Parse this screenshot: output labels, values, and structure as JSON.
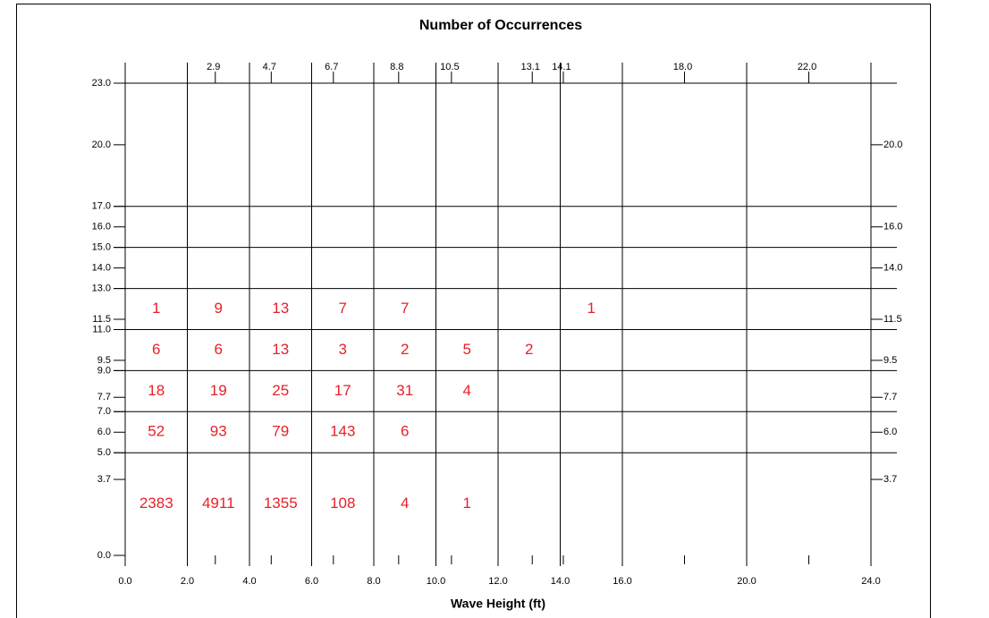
{
  "chart_data": {
    "type": "table-heatmap",
    "title": "Number of Occurrences",
    "x_label": "Wave Height (ft)",
    "xlim": [
      0,
      24
    ],
    "ylim": [
      0,
      23
    ],
    "xgrid": [
      0,
      2,
      4,
      6,
      8,
      10,
      12,
      14,
      16,
      20,
      24
    ],
    "ygrid": [
      5,
      7,
      9,
      11,
      13,
      15,
      17,
      23
    ],
    "xticks": [
      {
        "value": 0,
        "label": "0.0"
      },
      {
        "value": 2,
        "label": "2.0"
      },
      {
        "value": 4,
        "label": "4.0"
      },
      {
        "value": 6,
        "label": "6.0"
      },
      {
        "value": 8,
        "label": "8.0"
      },
      {
        "value": 10,
        "label": "10.0"
      },
      {
        "value": 12,
        "label": "12.0"
      },
      {
        "value": 14,
        "label": "14.0"
      },
      {
        "value": 16,
        "label": "16.0"
      },
      {
        "value": 20,
        "label": "20.0"
      },
      {
        "value": 24,
        "label": "24.0"
      }
    ],
    "x2ticks": [
      2.9,
      4.7,
      6.7,
      8.8,
      10.5,
      13.1,
      14.1,
      {
        "value": 18,
        "label": "18.0"
      },
      {
        "value": 22,
        "label": "22.0"
      }
    ],
    "yticks": [
      {
        "value": 23,
        "label": "23.0"
      },
      {
        "value": 20,
        "label": "20.0"
      },
      {
        "value": 17,
        "label": "17.0"
      },
      {
        "value": 16,
        "label": "16.0"
      },
      {
        "value": 15,
        "label": "15.0"
      },
      {
        "value": 14,
        "label": "14.0"
      },
      {
        "value": 13,
        "label": "13.0"
      },
      11.5,
      {
        "value": 11,
        "label": "11.0"
      },
      9.5,
      {
        "value": 9,
        "label": "9.0"
      },
      7.7,
      {
        "value": 7,
        "label": "7.0"
      },
      {
        "value": 6,
        "label": "6.0"
      },
      {
        "value": 5,
        "label": "5.0"
      },
      3.7,
      {
        "value": 0,
        "label": "0.0"
      }
    ],
    "y2ticks": [
      {
        "value": 20,
        "label": "20.0"
      },
      {
        "value": 16,
        "label": "16.0"
      },
      {
        "value": 14,
        "label": "14.0"
      },
      11.5,
      9.5,
      7.7,
      {
        "value": 6,
        "label": "6.0"
      },
      3.7
    ],
    "color": "#e8202a",
    "x": [
      1,
      3,
      5,
      7,
      9,
      11,
      13,
      15
    ],
    "rows": [
      {
        "y": 12,
        "values": [
          1,
          9,
          13,
          7,
          7,
          null,
          null,
          1
        ]
      },
      {
        "y": 10,
        "values": [
          6,
          6,
          13,
          3,
          2,
          5,
          2,
          null
        ]
      },
      {
        "y": 8,
        "values": [
          18,
          19,
          25,
          17,
          31,
          4,
          null,
          null
        ]
      },
      {
        "y": 6,
        "values": [
          52,
          93,
          79,
          143,
          6,
          null,
          null,
          null
        ]
      },
      {
        "y": 2.5,
        "values": [
          2383,
          4911,
          1355,
          108,
          4,
          1,
          null,
          null
        ]
      }
    ]
  }
}
